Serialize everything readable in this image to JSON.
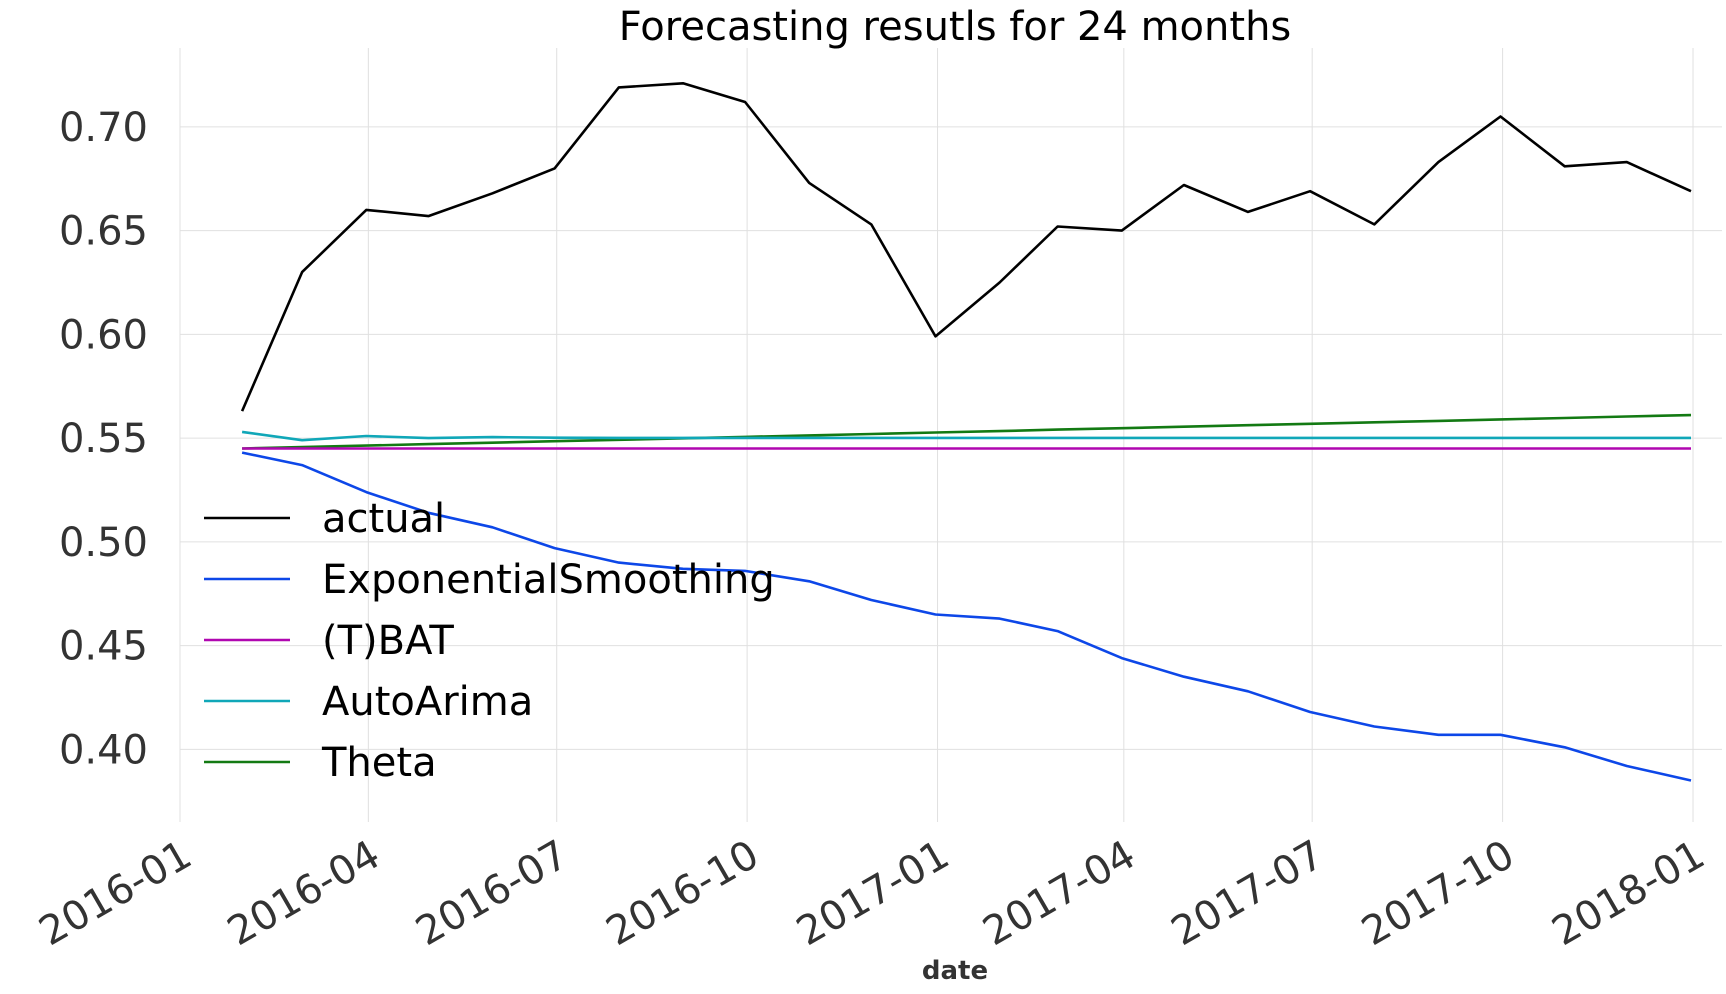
{
  "chart_data": {
    "type": "line",
    "title": "Forecasting resutls for 24 months",
    "xlabel": "date",
    "ylabel": "",
    "ylim": [
      0.365,
      0.738
    ],
    "xlim": [
      "2016-01-01",
      "2018-01-15"
    ],
    "x_ticks": [
      "2016-01",
      "2016-04",
      "2016-07",
      "2016-10",
      "2017-01",
      "2017-04",
      "2017-07",
      "2017-10",
      "2018-01"
    ],
    "y_ticks": [
      "0.40",
      "0.45",
      "0.50",
      "0.55",
      "0.60",
      "0.65",
      "0.70"
    ],
    "x": [
      "2016-01-31",
      "2016-02-29",
      "2016-03-31",
      "2016-04-30",
      "2016-05-31",
      "2016-06-30",
      "2016-07-31",
      "2016-08-31",
      "2016-09-30",
      "2016-10-31",
      "2016-11-30",
      "2016-12-31",
      "2017-01-31",
      "2017-02-28",
      "2017-03-31",
      "2017-04-30",
      "2017-05-31",
      "2017-06-30",
      "2017-07-31",
      "2017-08-31",
      "2017-09-30",
      "2017-10-31",
      "2017-11-30",
      "2017-12-31"
    ],
    "grid": true,
    "legend_position": "lower-left",
    "series": [
      {
        "name": "actual",
        "color": "#000000",
        "values": [
          0.563,
          0.63,
          0.66,
          0.657,
          0.668,
          0.68,
          0.719,
          0.721,
          0.712,
          0.673,
          0.653,
          0.599,
          0.625,
          0.652,
          0.65,
          0.672,
          0.659,
          0.669,
          0.653,
          0.683,
          0.705,
          0.681,
          0.683,
          0.669
        ]
      },
      {
        "name": " ExponentialSmoothing",
        "color": "#0d47e8",
        "values": [
          0.543,
          0.537,
          0.524,
          0.514,
          0.507,
          0.497,
          0.49,
          0.487,
          0.486,
          0.481,
          0.472,
          0.465,
          0.463,
          0.457,
          0.444,
          0.435,
          0.428,
          0.418,
          0.411,
          0.407,
          0.407,
          0.401,
          0.392,
          0.385
        ]
      },
      {
        "name": "(T)BAT",
        "color": "#b007b0",
        "values": [
          0.545,
          0.545,
          0.545,
          0.545,
          0.545,
          0.545,
          0.545,
          0.545,
          0.545,
          0.545,
          0.545,
          0.545,
          0.545,
          0.545,
          0.545,
          0.545,
          0.545,
          0.545,
          0.545,
          0.545,
          0.545,
          0.545,
          0.545,
          0.545
        ]
      },
      {
        "name": "AutoArima",
        "color": "#10a7b8",
        "values": [
          0.553,
          0.549,
          0.551,
          0.55,
          0.5505,
          0.5502,
          0.5501,
          0.5501,
          0.5501,
          0.5501,
          0.5501,
          0.5501,
          0.5501,
          0.5501,
          0.5501,
          0.5501,
          0.5501,
          0.5501,
          0.5501,
          0.5501,
          0.5501,
          0.5501,
          0.5501,
          0.5501
        ]
      },
      {
        "name": "Theta",
        "color": "#137a13",
        "values": [
          0.545,
          0.5457,
          0.5464,
          0.5471,
          0.5478,
          0.5485,
          0.5492,
          0.5499,
          0.5506,
          0.5513,
          0.552,
          0.5527,
          0.5534,
          0.5541,
          0.5548,
          0.5555,
          0.5562,
          0.5569,
          0.5576,
          0.5583,
          0.559,
          0.5597,
          0.5604,
          0.5611
        ]
      }
    ]
  }
}
